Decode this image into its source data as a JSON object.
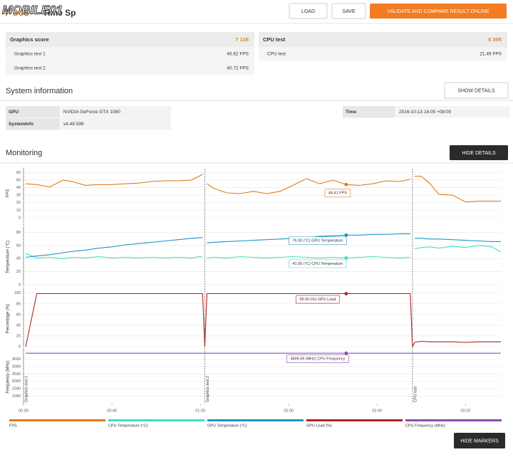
{
  "header": {
    "logo": "MOBILE01",
    "score": "7 005",
    "title": "Time Sp",
    "buttons": [
      "LOAD",
      "SAVE",
      "VALIDATE AND COMPARE RESULT ONLINE"
    ]
  },
  "scores": [
    {
      "label": "Graphics score",
      "value": "7 126",
      "tests": [
        {
          "label": "Graphics test 1",
          "value": "46.62 FPS"
        },
        {
          "label": "Graphics test 2",
          "value": "40.72 FPS"
        }
      ]
    },
    {
      "label": "CPU test",
      "value": "6 395",
      "tests": [
        {
          "label": "CPU test",
          "value": "21.49 FPS"
        }
      ]
    }
  ],
  "system": {
    "title": "System information",
    "button": "SHOW DETAILS",
    "left": [
      [
        "GPU",
        "NVIDIA GeForce GTX 1080"
      ],
      [
        "SystemInfo",
        "v4.48.599"
      ]
    ],
    "right": [
      [
        "Time",
        "2016-10-13 16:05 +08:00"
      ]
    ]
  },
  "monitoring": {
    "title": "Monitoring",
    "button": "HIDE DETAILS",
    "markers_button": "HIDE MARKERS",
    "markers": [
      {
        "label": "Graphics test 1",
        "x": 0
      },
      {
        "label": "Graphics test 2",
        "x": 82
      },
      {
        "label": "CPU test",
        "x": 176
      }
    ]
  },
  "chart_data": [
    {
      "type": "line",
      "y_label": "FPS",
      "xlim": [
        0,
        216
      ],
      "ylim": [
        0,
        65
      ],
      "yticks": [
        0,
        10,
        20,
        30,
        40,
        50,
        60
      ],
      "x": [
        1,
        6,
        12,
        18,
        22,
        28,
        34,
        40,
        46,
        52,
        58,
        64,
        70,
        76,
        80,
        81,
        82,
        83,
        86,
        92,
        98,
        104,
        110,
        116,
        122,
        128,
        134,
        140,
        146,
        152,
        158,
        164,
        170,
        175,
        176,
        177,
        180,
        184,
        188,
        194,
        200,
        206,
        212,
        216
      ],
      "series": [
        {
          "name": "FPS",
          "color": "#e07b1a",
          "annotation": "44.41 FPS",
          "values": [
            45,
            44,
            41,
            50,
            48,
            43,
            44,
            44,
            45,
            46,
            48,
            49,
            49,
            50,
            56,
            58,
            null,
            45,
            39,
            33,
            32,
            35,
            32,
            35,
            43,
            52,
            45,
            50,
            44,
            43,
            45,
            49,
            48,
            51,
            null,
            55,
            55,
            45,
            31,
            30,
            21,
            22,
            22,
            22
          ]
        }
      ]
    },
    {
      "type": "line",
      "y_label": "Temperature (°C)",
      "xlim": [
        0,
        216
      ],
      "ylim": [
        0,
        85
      ],
      "yticks": [
        0,
        20,
        40,
        60,
        80
      ],
      "x": [
        1,
        6,
        12,
        18,
        22,
        28,
        34,
        40,
        46,
        52,
        58,
        64,
        70,
        76,
        80,
        81,
        82,
        83,
        86,
        92,
        98,
        104,
        110,
        116,
        122,
        128,
        134,
        140,
        146,
        152,
        158,
        164,
        170,
        175,
        176,
        177,
        180,
        184,
        188,
        194,
        200,
        206,
        212,
        216
      ],
      "series": [
        {
          "name": "CPU Temperature (°C)",
          "color": "#3de0c4",
          "annotation": "41.00 (°C) CPU Temperature",
          "values": [
            48,
            41,
            42,
            40,
            42,
            41,
            43,
            41,
            42,
            41,
            42,
            41,
            42,
            41,
            43,
            42,
            null,
            41,
            42,
            41,
            43,
            42,
            41,
            42,
            43,
            42,
            41,
            42,
            41,
            42,
            43,
            42,
            41,
            42,
            null,
            55,
            57,
            58,
            56,
            59,
            57,
            60,
            58,
            50
          ]
        },
        {
          "name": "GPU Temperature (°C)",
          "color": "#1f93c9",
          "annotation": "76.00 (°C) GPU Temperature",
          "values": [
            42,
            44,
            46,
            49,
            51,
            53,
            56,
            58,
            61,
            63,
            65,
            67,
            69,
            71,
            72,
            72,
            null,
            64,
            65,
            66,
            67,
            68,
            69,
            70,
            71,
            72,
            74,
            75,
            76,
            76,
            77,
            77,
            78,
            78,
            null,
            71,
            71,
            70,
            70,
            69,
            68,
            67,
            66,
            66
          ]
        }
      ]
    },
    {
      "type": "line",
      "y_label": "Percentage (%)",
      "xlim": [
        0,
        216
      ],
      "ylim": [
        0,
        105
      ],
      "yticks": [
        0,
        20,
        40,
        60,
        80,
        100
      ],
      "x": [
        1,
        6,
        12,
        18,
        22,
        28,
        34,
        40,
        46,
        52,
        58,
        64,
        70,
        76,
        80,
        81,
        82,
        83,
        86,
        92,
        98,
        104,
        110,
        116,
        122,
        128,
        134,
        140,
        146,
        152,
        158,
        164,
        170,
        175,
        176,
        177,
        180,
        184,
        188,
        194,
        200,
        206,
        212,
        216
      ],
      "series": [
        {
          "name": "GPU Load (%)",
          "color": "#b22222",
          "annotation": "99.00 (%) GPU Load",
          "values": [
            0,
            99,
            99,
            99,
            99,
            99,
            99,
            99,
            99,
            99,
            99,
            99,
            99,
            99,
            99,
            99,
            0,
            99,
            99,
            99,
            99,
            99,
            99,
            99,
            99,
            99,
            99,
            99,
            99,
            99,
            99,
            99,
            99,
            99,
            0,
            8,
            10,
            9,
            9,
            9,
            8,
            9,
            9,
            9
          ]
        }
      ]
    },
    {
      "type": "line",
      "y_label": "Frequency (MHz)",
      "xlim": [
        0,
        216
      ],
      "ylim": [
        500,
        4100
      ],
      "yticks": [
        1000,
        1500,
        2000,
        2500,
        3000,
        3500
      ],
      "xticks": [
        {
          "value": 0,
          "label": "00:00"
        },
        {
          "value": 40,
          "label": "00:40"
        },
        {
          "value": 80,
          "label": "01:20"
        },
        {
          "value": 120,
          "label": "02:00"
        },
        {
          "value": 160,
          "label": "02:40"
        },
        {
          "value": 200,
          "label": "03:20"
        }
      ],
      "x": [
        1,
        6,
        12,
        18,
        22,
        28,
        34,
        40,
        46,
        52,
        58,
        64,
        70,
        76,
        80,
        81,
        82,
        83,
        86,
        92,
        98,
        104,
        110,
        116,
        122,
        128,
        134,
        140,
        146,
        152,
        158,
        164,
        170,
        175,
        176,
        177,
        180,
        184,
        188,
        194,
        200,
        206,
        212,
        216
      ],
      "series": [
        {
          "name": "CPU Frequency (MHz)",
          "color": "#8a4fb0",
          "annotation": "3899.09 (MHz) CPU Frequency",
          "values": [
            3899.09,
            3899.09,
            3899.09,
            3899.09,
            3899.09,
            3899.09,
            3899.09,
            3899.09,
            3899.09,
            3899.09,
            3899.09,
            3899.09,
            3899.09,
            3899.09,
            3899.09,
            3899.09,
            3899.09,
            3899.09,
            3899.09,
            3899.09,
            3899.09,
            3899.09,
            3899.09,
            3899.09,
            3899.09,
            3899.09,
            3899.09,
            3899.09,
            3899.09,
            3899.09,
            3899.09,
            3899.09,
            3899.09,
            3899.09,
            3899.09,
            3899.09,
            3899.09,
            3899.09,
            3899.09,
            3899.09,
            3899.09,
            3899.09,
            3899.09,
            3899.09
          ]
        }
      ]
    }
  ]
}
